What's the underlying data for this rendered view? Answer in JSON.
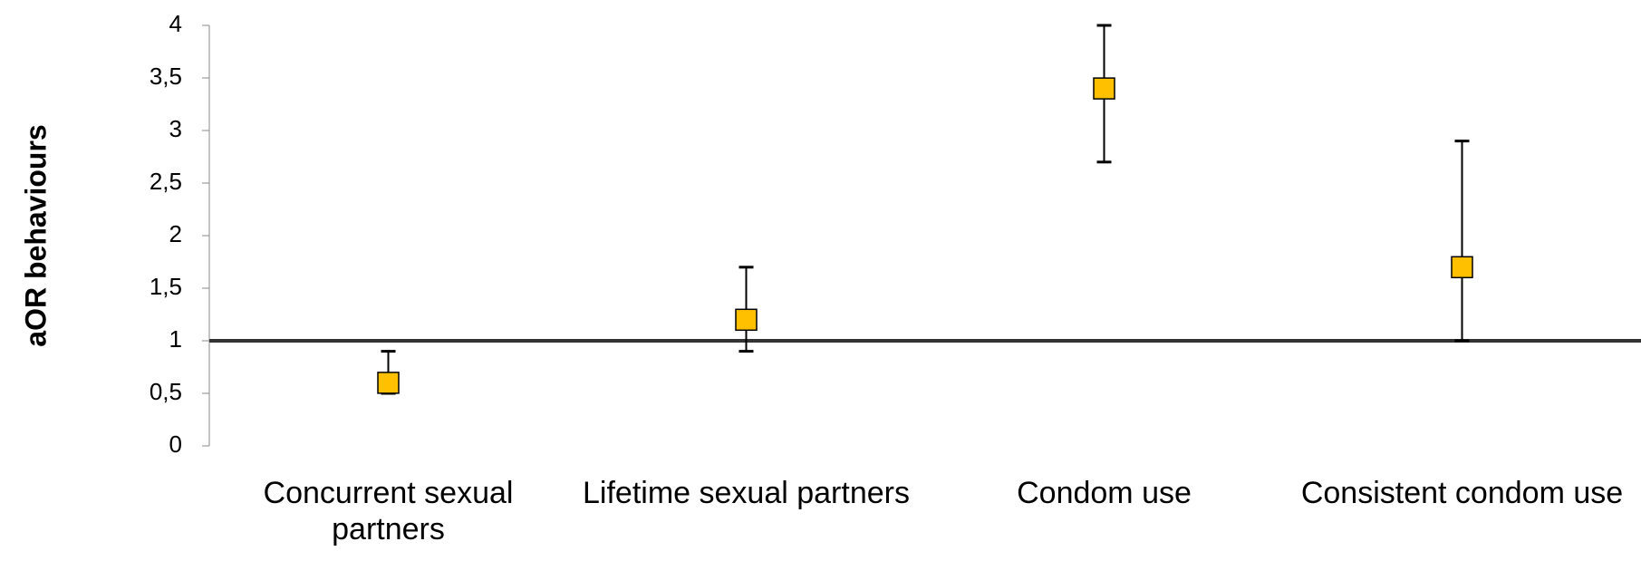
{
  "chart_data": {
    "type": "errorbar",
    "y_label": "aOR  behaviours",
    "categories": [
      "Concurrent sexual partners",
      "Lifetime sexual partners",
      "Condom use",
      "Consistent condom use"
    ],
    "series": [
      {
        "color": "#FFC000",
        "values": [
          0.6,
          1.2,
          3.4,
          1.7
        ],
        "lower": [
          0.5,
          0.9,
          2.7,
          1.0
        ],
        "upper": [
          0.9,
          1.7,
          4.0,
          2.9
        ]
      }
    ],
    "ylim": [
      0,
      4
    ],
    "yticks": [
      0,
      {
        "value": 0.5,
        "label": "0,5"
      },
      1,
      {
        "value": 1.5,
        "label": "1,5"
      },
      2,
      {
        "value": 2.5,
        "label": "2,5"
      },
      3,
      {
        "value": 3.5,
        "label": "3,5"
      },
      4
    ],
    "reference_line": 1
  }
}
